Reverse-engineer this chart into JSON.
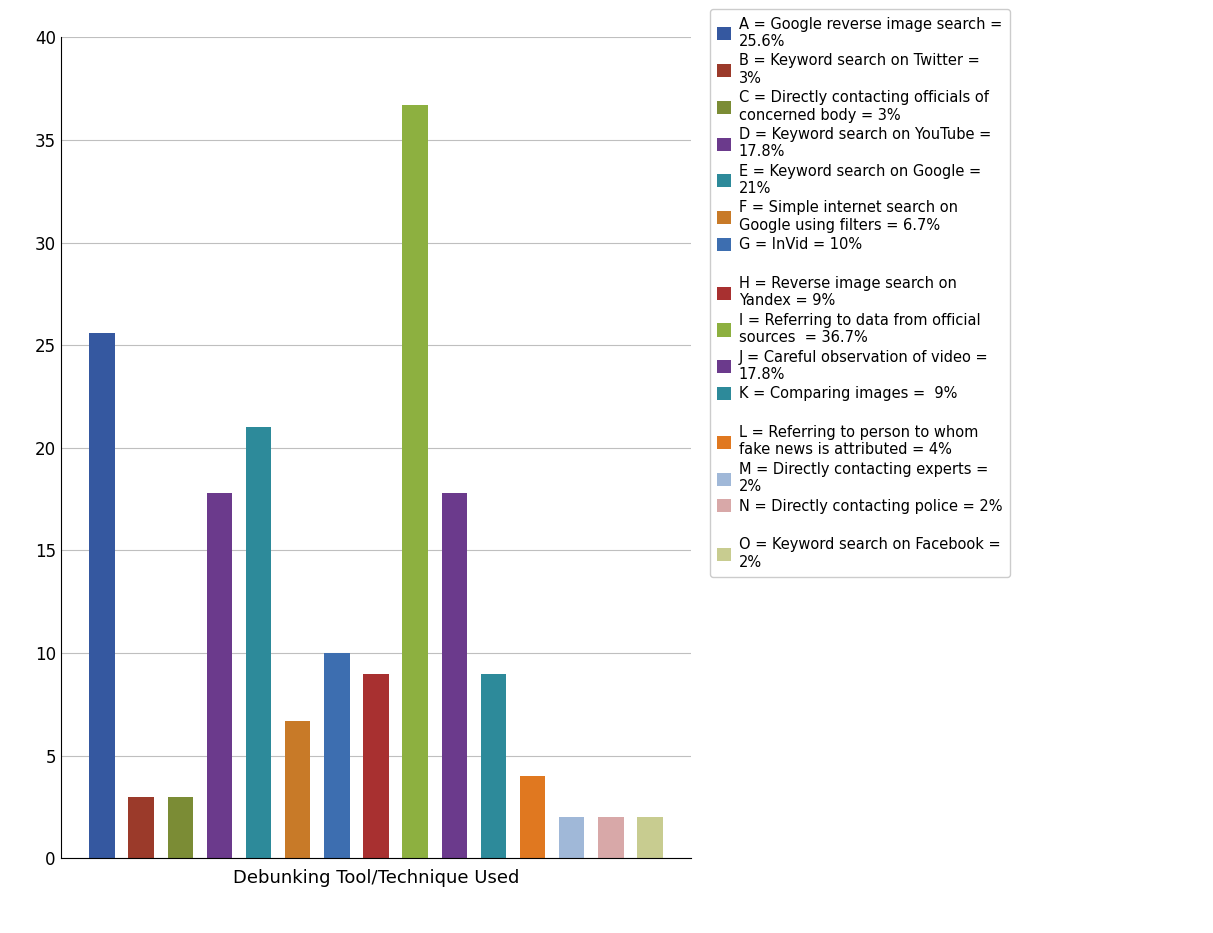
{
  "categories": [
    "A",
    "B",
    "C",
    "D",
    "E",
    "F",
    "G",
    "H",
    "I",
    "J",
    "K",
    "L",
    "M",
    "N",
    "O"
  ],
  "values": [
    25.6,
    3.0,
    3.0,
    17.8,
    21.0,
    6.7,
    10.0,
    9.0,
    36.7,
    17.8,
    9.0,
    4.0,
    2.0,
    2.0,
    2.0
  ],
  "colors": [
    "#3558A0",
    "#9B3A2A",
    "#7B8C35",
    "#6B3A8C",
    "#2D8A9A",
    "#C87A28",
    "#3D6EB0",
    "#A83030",
    "#8DB040",
    "#6B3A8C",
    "#2D8A9A",
    "#E07820",
    "#A0B8D8",
    "#D8A8A8",
    "#C8CC90"
  ],
  "legend_labels": [
    "A = Google reverse image search =\n25.6%",
    "B = Keyword search on Twitter =\n3%",
    "C = Directly contacting officials of\nconcerned body = 3%",
    "D = Keyword search on YouTube =\n17.8%",
    "E = Keyword search on Google =\n21%",
    "F = Simple internet search on\nGoogle using filters = 6.7%",
    "G = InVid = 10%",
    "H = Reverse image search on\nYandex = 9%",
    "I = Referring to data from official\nsources  = 36.7%",
    "J = Careful observation of video =\n17.8%",
    "K = Comparing images =  9%",
    "L = Referring to person to whom\nfake news is attributed = 4%",
    "M = Directly contacting experts =\n2%",
    "N = Directly contacting police = 2%",
    "O = Keyword search on Facebook =\n2%"
  ],
  "legend_spacers": [
    6,
    10,
    13
  ],
  "xlabel": "Debunking Tool/Technique Used",
  "ylim": [
    0,
    40
  ],
  "yticks": [
    0,
    5,
    10,
    15,
    20,
    25,
    30,
    35,
    40
  ],
  "background_color": "#FFFFFF",
  "grid_color": "#BFBFBF"
}
